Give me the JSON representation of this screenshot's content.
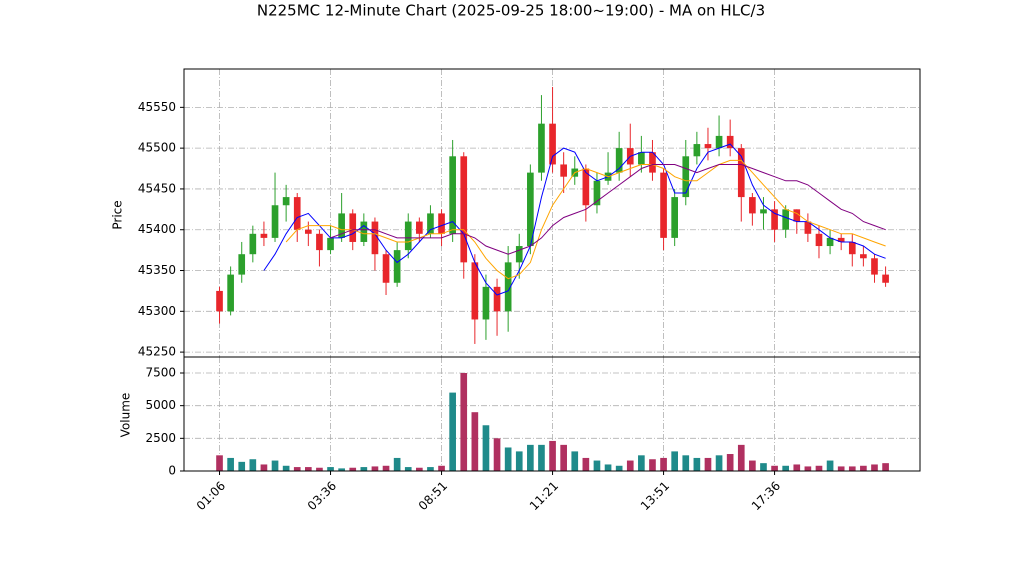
{
  "chart_data": [
    {
      "type": "candlestick",
      "title": "N225MC 12-Minute Chart (2025-09-25 18:00~19:00) - MA on HLC/3",
      "ylabel": "Price",
      "open": [
        45325,
        45300,
        45345,
        45370,
        45395,
        45390,
        45430,
        45440,
        45400,
        45395,
        45375,
        45390,
        45420,
        45385,
        45410,
        45370,
        45335,
        45375,
        45410,
        45395,
        45420,
        45395,
        45490,
        45360,
        45290,
        45330,
        45300,
        45360,
        45380,
        45470,
        45530,
        45480,
        45465,
        45475,
        45430,
        45460,
        45470,
        45500,
        45480,
        45495,
        45470,
        45390,
        45440,
        45490,
        45505,
        45500,
        45515,
        45500,
        45440,
        45420,
        45425,
        45400,
        45425,
        45410,
        45395,
        45380,
        45390,
        45385,
        45370,
        45365,
        45345
      ],
      "high": [
        45330,
        45355,
        45385,
        45405,
        45410,
        45470,
        45455,
        45445,
        45410,
        45400,
        45405,
        45445,
        45425,
        45420,
        45415,
        45375,
        45385,
        45420,
        45415,
        45430,
        45425,
        45510,
        45495,
        45370,
        45345,
        45340,
        45380,
        45395,
        45480,
        45565,
        45575,
        45495,
        45490,
        45480,
        45470,
        45495,
        45520,
        45530,
        45515,
        45510,
        45475,
        45450,
        45510,
        45520,
        45525,
        45540,
        45535,
        45505,
        45445,
        45440,
        45435,
        45430,
        45425,
        45420,
        45405,
        45400,
        45395,
        45395,
        45380,
        45370,
        45355
      ],
      "low": [
        45285,
        45295,
        45335,
        45360,
        45380,
        45385,
        45410,
        45385,
        45380,
        45355,
        45370,
        45385,
        45375,
        45380,
        45350,
        45320,
        45330,
        45365,
        45385,
        45390,
        45380,
        45385,
        45340,
        45260,
        45265,
        45270,
        45275,
        45340,
        45370,
        45460,
        45470,
        45445,
        45455,
        45410,
        45420,
        45455,
        45460,
        45465,
        45470,
        45460,
        45375,
        45380,
        45430,
        45480,
        45485,
        45490,
        45490,
        45410,
        45405,
        45400,
        45385,
        45390,
        45395,
        45385,
        45365,
        45370,
        45375,
        45355,
        45355,
        45335,
        45330
      ],
      "close": [
        45300,
        45345,
        45370,
        45395,
        45390,
        45430,
        45440,
        45400,
        45395,
        45375,
        45390,
        45420,
        45385,
        45410,
        45370,
        45335,
        45375,
        45410,
        45395,
        45420,
        45395,
        45490,
        45360,
        45290,
        45330,
        45300,
        45360,
        45380,
        45470,
        45530,
        45480,
        45465,
        45475,
        45430,
        45460,
        45470,
        45500,
        45480,
        45495,
        45470,
        45390,
        45440,
        45490,
        45505,
        45500,
        45515,
        45500,
        45440,
        45420,
        45425,
        45400,
        45425,
        45410,
        45395,
        45380,
        45390,
        45385,
        45370,
        45365,
        45345,
        45335
      ],
      "up_color": "#2ca02c",
      "down_color": "#e8262b",
      "series": [
        {
          "color": "#0000ff",
          "values": [
            null,
            null,
            null,
            null,
            45350,
            45370,
            45395,
            45415,
            45420,
            45405,
            45390,
            45390,
            45395,
            45405,
            45395,
            45375,
            45360,
            45370,
            45385,
            45400,
            45405,
            45410,
            45395,
            45360,
            45335,
            45320,
            45325,
            45350,
            45380,
            45440,
            45490,
            45500,
            45495,
            45470,
            45460,
            45465,
            45475,
            45490,
            45495,
            45495,
            45480,
            45445,
            45445,
            45475,
            45495,
            45500,
            45505,
            45490,
            45455,
            45430,
            45420,
            45415,
            45410,
            45410,
            45400,
            45390,
            45385,
            45385,
            45380,
            45370,
            45365
          ]
        },
        {
          "color": "#ffa500",
          "values": [
            null,
            null,
            null,
            null,
            null,
            null,
            45385,
            45400,
            45405,
            45405,
            45405,
            45400,
            45400,
            45395,
            45395,
            45390,
            45385,
            45385,
            45390,
            45395,
            45395,
            45400,
            45400,
            45385,
            45365,
            45350,
            45340,
            45345,
            45360,
            45400,
            45430,
            45450,
            45470,
            45475,
            45470,
            45465,
            45470,
            45475,
            45480,
            45480,
            45475,
            45465,
            45460,
            45460,
            45470,
            45480,
            45485,
            45485,
            45470,
            45455,
            45440,
            45425,
            45420,
            45410,
            45405,
            45400,
            45395,
            45395,
            45390,
            45385,
            45380
          ]
        },
        {
          "color": "#800080",
          "values": [
            null,
            null,
            null,
            null,
            null,
            null,
            null,
            null,
            null,
            null,
            45390,
            45395,
            45400,
            45400,
            45400,
            45395,
            45390,
            45390,
            45390,
            45390,
            45390,
            45395,
            45395,
            45390,
            45380,
            45375,
            45370,
            45375,
            45380,
            45390,
            45405,
            45415,
            45420,
            45425,
            45435,
            45445,
            45455,
            45465,
            45475,
            45480,
            45480,
            45480,
            45475,
            45470,
            45475,
            45480,
            45480,
            45480,
            45475,
            45470,
            45465,
            45460,
            45460,
            45455,
            45445,
            45435,
            45425,
            45420,
            45410,
            45405,
            45400
          ]
        }
      ],
      "ylim": [
        45244,
        45597
      ],
      "yticks": [
        45250,
        45300,
        45350,
        45400,
        45450,
        45500,
        45550
      ],
      "grid": true
    },
    {
      "type": "bar",
      "ylabel": "Volume",
      "values": [
        1200,
        1000,
        700,
        900,
        500,
        800,
        400,
        300,
        300,
        250,
        300,
        200,
        250,
        300,
        350,
        400,
        1000,
        300,
        250,
        300,
        400,
        6000,
        7500,
        4500,
        3500,
        2500,
        1800,
        1500,
        2000,
        2000,
        2300,
        2000,
        1500,
        1000,
        800,
        500,
        400,
        800,
        1200,
        900,
        1000,
        1500,
        1200,
        1000,
        1000,
        1200,
        1300,
        2000,
        800,
        600,
        400,
        400,
        500,
        350,
        400,
        800,
        350,
        350,
        400,
        500,
        600
      ],
      "up_color": "#1f8a8a",
      "down_color": "#b03060",
      "ylim": [
        0,
        8724
      ],
      "yticks": [
        0,
        {
          "value": 2500,
          "label": "2500"
        },
        5000,
        7500
      ],
      "xlim": [
        -3.2,
        63.1
      ],
      "xticks": [
        {
          "value": 0,
          "label": "01:06"
        },
        {
          "value": 10,
          "label": "03:36"
        },
        {
          "value": 20,
          "label": "08:51"
        },
        {
          "value": 30,
          "label": "11:21"
        },
        {
          "value": 40,
          "label": "13:51"
        },
        {
          "value": 50,
          "label": "17:36"
        }
      ],
      "grid": true
    }
  ]
}
